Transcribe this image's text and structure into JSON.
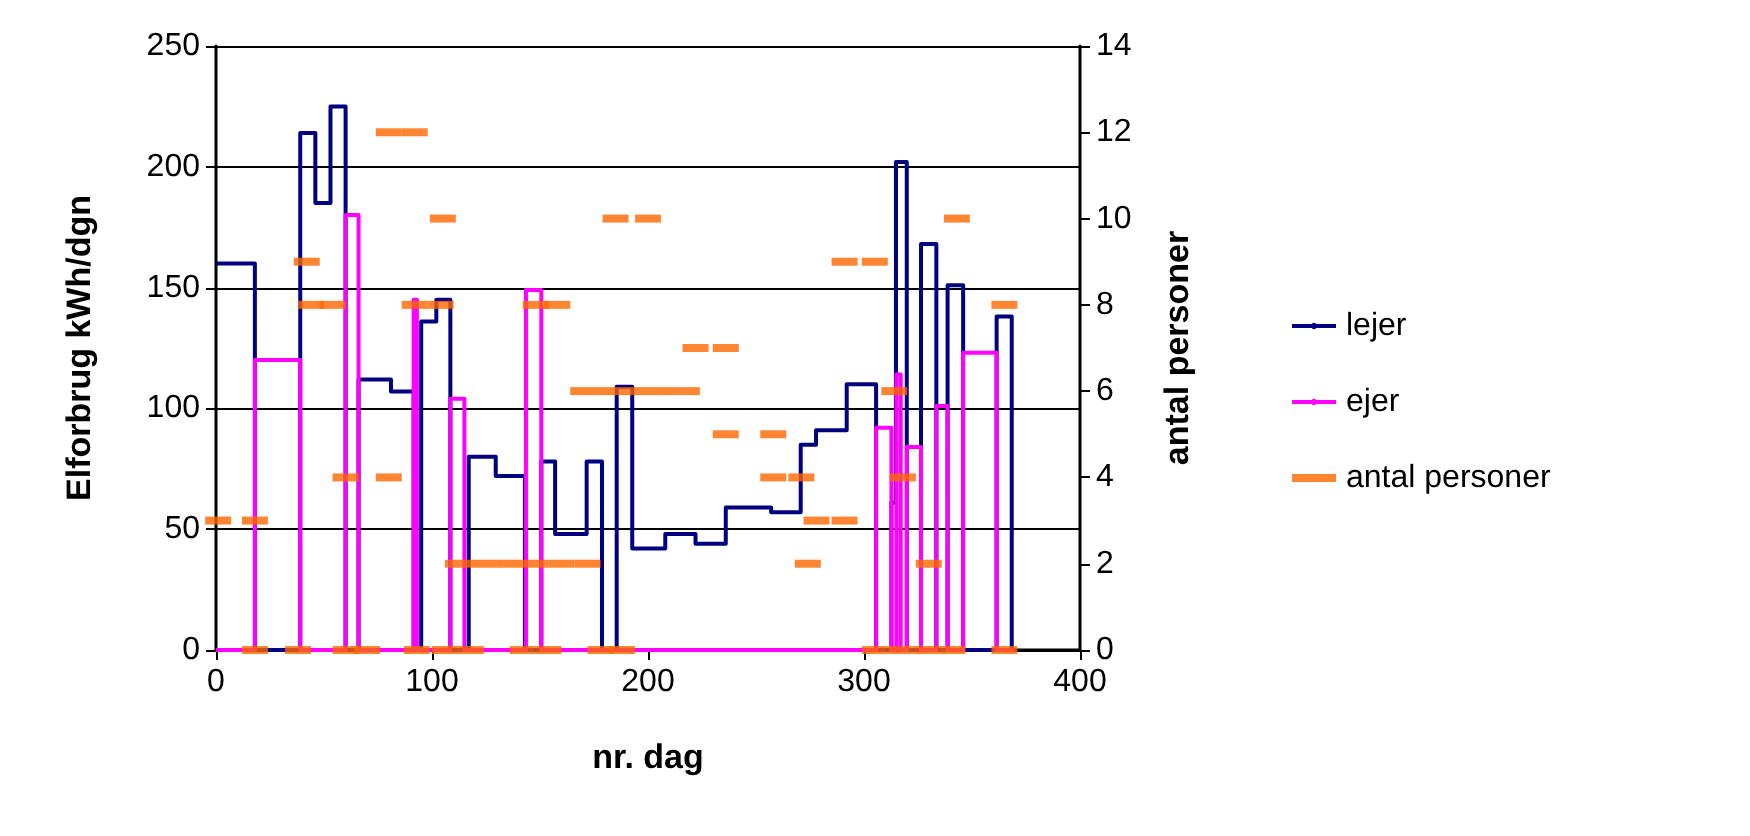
{
  "chart_data": {
    "type": "step",
    "xlabel": "nr. dag",
    "ylabel": "Elforbrug kWh/dgn",
    "y2label": "antal personer",
    "xlim": [
      0,
      400
    ],
    "xticks": [
      0,
      100,
      200,
      300,
      400
    ],
    "ylim": [
      0,
      250
    ],
    "yticks": [
      0,
      50,
      100,
      150,
      200,
      250
    ],
    "y2lim": [
      0,
      14
    ],
    "y2ticks": [
      0,
      2,
      4,
      6,
      8,
      10,
      12,
      14
    ],
    "grid": "y",
    "legend": "right",
    "series": [
      {
        "name": "lejer",
        "color": "#000080",
        "x": [
          0,
          18,
          39,
          46,
          53,
          60,
          66,
          81,
          91.5,
          95,
          102,
          108.5,
          117,
          129.5,
          143,
          150.6,
          157,
          171.6,
          178.7,
          185.5,
          192.7,
          208,
          222,
          236,
          257,
          270.7,
          277.8,
          292,
          305.6,
          312.7,
          314.8,
          319.8,
          326.4,
          333.5,
          338.7,
          345.9,
          361.4,
          368.4
        ],
        "values": [
          160,
          0,
          214,
          185,
          225,
          0,
          112,
          107,
          0,
          136,
          145,
          0,
          80,
          72,
          0,
          78,
          48,
          78,
          0,
          109,
          42,
          48,
          44,
          59,
          57,
          85,
          91,
          110,
          0,
          61,
          202,
          0,
          168,
          0,
          151,
          0,
          138,
          0
        ]
      },
      {
        "name": "ejer",
        "color": "#ff00ff",
        "x": [
          0,
          18,
          39,
          60,
          66,
          91.5,
          93,
          108.5,
          115,
          143.5,
          150.6,
          305.6,
          312.7,
          315,
          317,
          319.8,
          326.4,
          333.5,
          338.7,
          345.9,
          361.4,
          370
        ],
        "values": [
          0,
          120,
          0,
          180,
          0,
          145,
          0,
          104,
          0,
          149,
          0,
          92,
          0,
          114,
          0,
          84,
          0,
          101,
          0,
          123,
          0,
          0
        ]
      },
      {
        "name": "antal personer",
        "color": "#ff6600",
        "type": "scatter",
        "axis": "y2",
        "x": [
          1,
          18,
          18,
          38,
          42,
          44,
          54,
          60,
          70,
          60,
          80,
          80,
          92,
          93,
          92,
          104,
          105,
          106,
          118,
          112,
          124,
          136,
          148,
          160,
          172,
          142,
          154,
          148,
          158,
          178,
          188,
          185,
          200,
          170,
          182,
          194,
          206,
          218,
          222,
          236,
          236,
          258,
          258,
          271,
          278,
          291,
          274,
          291,
          305,
          314,
          318,
          330,
          343,
          365,
          305,
          317,
          329,
          341,
          365
        ],
        "values": [
          3,
          3,
          0,
          0,
          9,
          8,
          8,
          0,
          0,
          4,
          4,
          12,
          12,
          0,
          8,
          8,
          10,
          0,
          0,
          2,
          2,
          2,
          2,
          2,
          2,
          0,
          0,
          8,
          8,
          0,
          0,
          10,
          10,
          6,
          6,
          6,
          6,
          6,
          7,
          7,
          5,
          5,
          4,
          4,
          3,
          3,
          2,
          9,
          9,
          6,
          4,
          2,
          10,
          8,
          0,
          0,
          0,
          0,
          0
        ]
      }
    ]
  }
}
